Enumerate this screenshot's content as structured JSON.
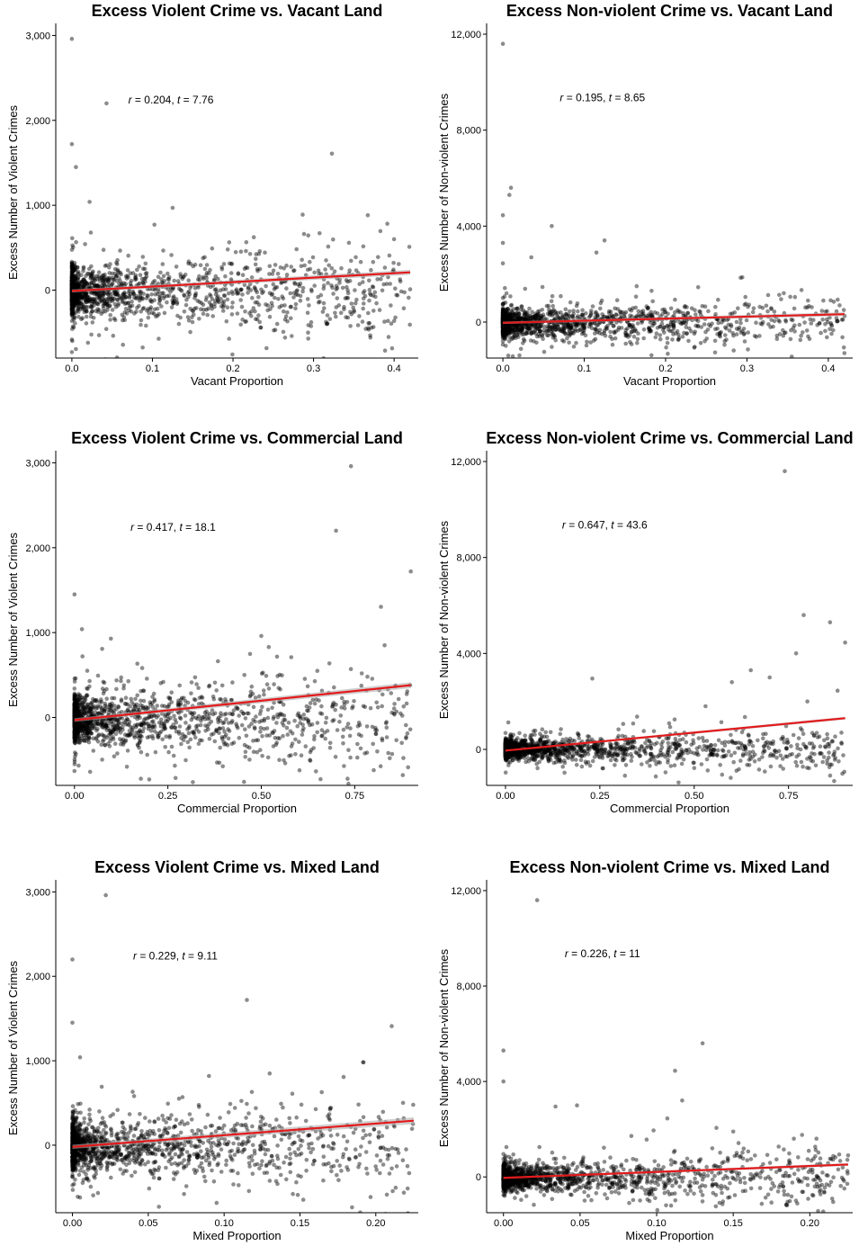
{
  "chart_data": [
    {
      "type": "scatter",
      "title": "Excess Violent Crime vs. Vacant Land",
      "xlabel": "Vacant Proportion",
      "ylabel": "Excess Number of Violent Crimes",
      "xlim": [
        -0.02,
        0.43
      ],
      "ylim": [
        -800,
        3100
      ],
      "xticks": [
        0.0,
        0.1,
        0.2,
        0.3,
        0.4
      ],
      "xtick_labels": [
        "0.0",
        "0.1",
        "0.2",
        "0.3",
        "0.4"
      ],
      "yticks": [
        0,
        1000,
        2000,
        3000
      ],
      "ytick_labels": [
        "0",
        "1,000",
        "2,000",
        "3,000"
      ],
      "annotation": {
        "r_label": "r",
        "r_value": "0.204",
        "t_label": "t",
        "t_value": "7.76",
        "x": 0.07,
        "y": 2200
      },
      "fit": {
        "x0": 0.0,
        "y0": -10,
        "x1": 0.42,
        "y1": 210,
        "se": 30
      },
      "outliers": [
        [
          0.0,
          2960
        ],
        [
          0.0,
          1720
        ],
        [
          0.005,
          1450
        ],
        [
          0.043,
          2200
        ],
        [
          0.022,
          1040
        ],
        [
          0.125,
          970
        ],
        [
          0.4,
          600
        ],
        [
          0.42,
          10
        ],
        [
          0.0,
          -730
        ],
        [
          0.02,
          -620
        ]
      ],
      "cloud": {
        "x_max": 0.42,
        "y_center": -20,
        "y_spread": 280,
        "count": 1500
      },
      "grid": false,
      "legend": "none"
    },
    {
      "type": "scatter",
      "title": "Excess Non-violent Crime vs. Vacant Land",
      "xlabel": "Vacant Proportion",
      "ylabel": "Excess Number of Non-violent Crimes",
      "xlim": [
        -0.02,
        0.43
      ],
      "ylim": [
        -1500,
        12300
      ],
      "xticks": [
        0.0,
        0.1,
        0.2,
        0.3,
        0.4
      ],
      "xtick_labels": [
        "0.0",
        "0.1",
        "0.2",
        "0.3",
        "0.4"
      ],
      "yticks": [
        0,
        4000,
        8000,
        12000
      ],
      "ytick_labels": [
        "0",
        "4,000",
        "8,000",
        "12,000"
      ],
      "annotation": {
        "r_label": "r",
        "r_value": "0.195",
        "t_label": "t",
        "t_value": "8.65",
        "x": 0.07,
        "y": 9200
      },
      "fit": {
        "x0": 0.0,
        "y0": -30,
        "x1": 0.42,
        "y1": 330,
        "se": 80
      },
      "outliers": [
        [
          0.0,
          11600
        ],
        [
          0.01,
          5600
        ],
        [
          0.008,
          5300
        ],
        [
          0.0,
          4450
        ],
        [
          0.06,
          4000
        ],
        [
          0.125,
          3400
        ],
        [
          0.115,
          2900
        ],
        [
          0.0,
          3300
        ],
        [
          0.035,
          2700
        ],
        [
          0.0,
          2450
        ],
        [
          0.24,
          1450
        ],
        [
          0.42,
          250
        ]
      ],
      "cloud": {
        "x_max": 0.42,
        "y_center": -40,
        "y_spread": 550,
        "count": 1500
      },
      "grid": false,
      "legend": "none"
    },
    {
      "type": "scatter",
      "title": "Excess Violent Crime vs. Commercial Land",
      "xlabel": "Commercial Proportion",
      "ylabel": "Excess Number of Violent Crimes",
      "xlim": [
        -0.05,
        0.92
      ],
      "ylim": [
        -800,
        3100
      ],
      "xticks": [
        0.0,
        0.25,
        0.5,
        0.75
      ],
      "xtick_labels": [
        "0.00",
        "0.25",
        "0.50",
        "0.75"
      ],
      "yticks": [
        0,
        1000,
        2000,
        3000
      ],
      "ytick_labels": [
        "0",
        "1,000",
        "2,000",
        "3,000"
      ],
      "annotation": {
        "r_label": "r",
        "r_value": "0.417",
        "t_label": "t",
        "t_value": "18.1",
        "x": 0.15,
        "y": 2200
      },
      "fit": {
        "x0": 0.0,
        "y0": -30,
        "x1": 0.9,
        "y1": 380,
        "se": 35
      },
      "outliers": [
        [
          0.74,
          2960
        ],
        [
          0.7,
          2200
        ],
        [
          0.9,
          1720
        ],
        [
          0.0,
          1450
        ],
        [
          0.02,
          1040
        ],
        [
          0.5,
          960
        ],
        [
          0.0,
          -630
        ],
        [
          0.83,
          850
        ],
        [
          0.2,
          -730
        ],
        [
          0.52,
          830
        ],
        [
          0.85,
          -430
        ]
      ],
      "cloud": {
        "x_max": 0.9,
        "y_center": -20,
        "y_spread": 280,
        "count": 1500
      },
      "grid": false,
      "legend": "none"
    },
    {
      "type": "scatter",
      "title": "Excess Non-violent Crime vs. Commercial Land",
      "xlabel": "Commercial Proportion",
      "ylabel": "Excess Number of Non-violent Crimes",
      "xlim": [
        -0.05,
        0.92
      ],
      "ylim": [
        -1500,
        12300
      ],
      "xticks": [
        0.0,
        0.25,
        0.5,
        0.75
      ],
      "xtick_labels": [
        "0.00",
        "0.25",
        "0.50",
        "0.75"
      ],
      "yticks": [
        0,
        4000,
        8000,
        12000
      ],
      "ytick_labels": [
        "0",
        "4,000",
        "8,000",
        "12,000"
      ],
      "annotation": {
        "r_label": "r",
        "r_value": "0.647",
        "t_label": "t",
        "t_value": "43.6",
        "x": 0.15,
        "y": 9200
      },
      "fit": {
        "x0": 0.0,
        "y0": -50,
        "x1": 0.9,
        "y1": 1300,
        "se": 60
      },
      "outliers": [
        [
          0.74,
          11600
        ],
        [
          0.79,
          5600
        ],
        [
          0.86,
          5300
        ],
        [
          0.9,
          4450
        ],
        [
          0.77,
          4000
        ],
        [
          0.65,
          3300
        ],
        [
          0.23,
          2950
        ],
        [
          0.88,
          2450
        ],
        [
          0.8,
          2000
        ],
        [
          0.53,
          1800
        ],
        [
          0.6,
          2800
        ],
        [
          0.7,
          3000
        ]
      ],
      "cloud": {
        "x_max": 0.9,
        "y_center": 0,
        "y_spread": 450,
        "count": 1500
      },
      "grid": false,
      "legend": "none"
    },
    {
      "type": "scatter",
      "title": "Excess Violent Crime vs. Mixed Land",
      "xlabel": "Mixed Proportion",
      "ylabel": "Excess Number of Violent Crimes",
      "xlim": [
        -0.011,
        0.228
      ],
      "ylim": [
        -800,
        3100
      ],
      "xticks": [
        0.0,
        0.05,
        0.1,
        0.15,
        0.2
      ],
      "xtick_labels": [
        "0.00",
        "0.05",
        "0.10",
        "0.15",
        "0.20"
      ],
      "yticks": [
        0,
        1000,
        2000,
        3000
      ],
      "ytick_labels": [
        "0",
        "1,000",
        "2,000",
        "3,000"
      ],
      "annotation": {
        "r_label": "r",
        "r_value": "0.229",
        "t_label": "t",
        "t_value": "9.11",
        "x": 0.04,
        "y": 2200
      },
      "fit": {
        "x0": 0.0,
        "y0": -20,
        "x1": 0.225,
        "y1": 290,
        "se": 40
      },
      "outliers": [
        [
          0.022,
          2960
        ],
        [
          0.0,
          2200
        ],
        [
          0.115,
          1720
        ],
        [
          0.0,
          1450
        ],
        [
          0.005,
          1040
        ],
        [
          0.13,
          850
        ],
        [
          0.09,
          820
        ],
        [
          0.145,
          610
        ],
        [
          0.057,
          -730
        ],
        [
          0.005,
          -620
        ],
        [
          0.22,
          -50
        ]
      ],
      "cloud": {
        "x_max": 0.225,
        "y_center": -20,
        "y_spread": 280,
        "count": 1500
      },
      "grid": false,
      "legend": "none"
    },
    {
      "type": "scatter",
      "title": "Excess Non-violent Crime vs. Mixed Land",
      "xlabel": "Mixed Proportion",
      "ylabel": "Excess Number of Non-violent Crimes",
      "xlim": [
        -0.011,
        0.228
      ],
      "ylim": [
        -1500,
        12300
      ],
      "xticks": [
        0.0,
        0.05,
        0.1,
        0.15,
        0.2
      ],
      "xtick_labels": [
        "0.00",
        "0.05",
        "0.10",
        "0.15",
        "0.20"
      ],
      "yticks": [
        0,
        4000,
        8000,
        12000
      ],
      "ytick_labels": [
        "0",
        "4,000",
        "8,000",
        "12,000"
      ],
      "annotation": {
        "r_label": "r",
        "r_value": "0.226",
        "t_label": "t",
        "t_value": "11",
        "x": 0.04,
        "y": 9200
      },
      "fit": {
        "x0": 0.0,
        "y0": -40,
        "x1": 0.225,
        "y1": 520,
        "se": 60
      },
      "outliers": [
        [
          0.022,
          11600
        ],
        [
          0.13,
          5600
        ],
        [
          0.0,
          5300
        ],
        [
          0.112,
          4450
        ],
        [
          0.0,
          4000
        ],
        [
          0.107,
          2450
        ],
        [
          0.048,
          3000
        ],
        [
          0.034,
          2950
        ],
        [
          0.098,
          1950
        ],
        [
          0.15,
          1900
        ],
        [
          0.183,
          1150
        ],
        [
          0.225,
          900
        ]
      ],
      "cloud": {
        "x_max": 0.225,
        "y_center": -40,
        "y_spread": 550,
        "count": 1500
      },
      "grid": false,
      "legend": "none"
    }
  ],
  "style": {
    "point_color": "#000000",
    "point_opacity": 0.45,
    "fit_color": "#e31a1c",
    "band_color": "#b0b0b0",
    "axis_color": "#000000"
  }
}
